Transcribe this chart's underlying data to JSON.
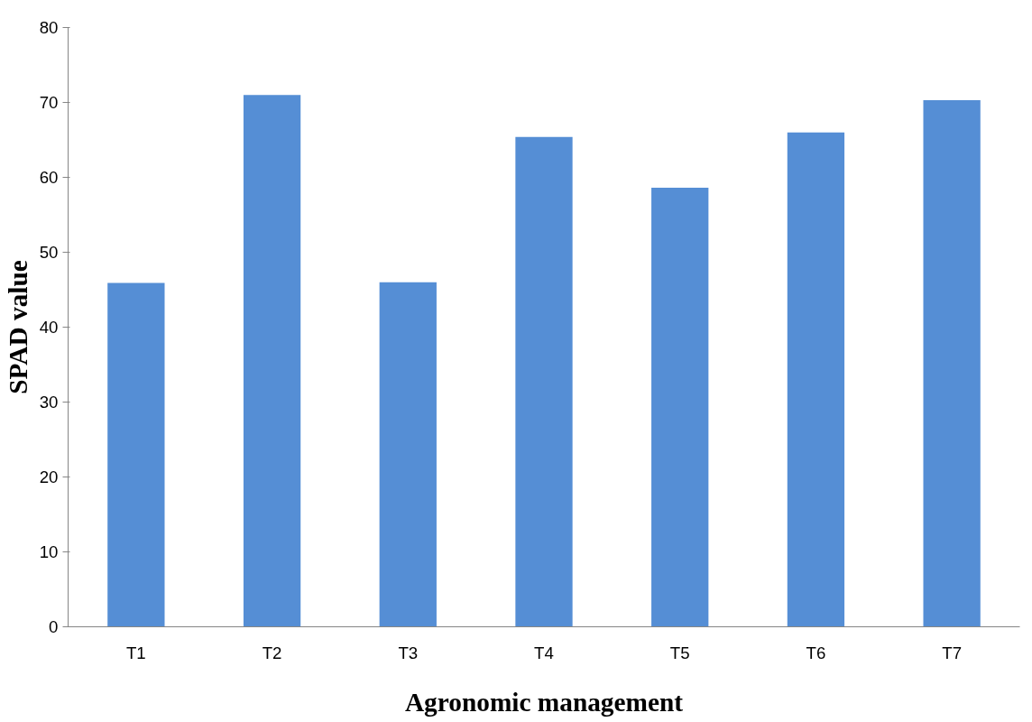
{
  "chart_data": {
    "type": "bar",
    "xlabel": "Agronomic management",
    "ylabel": "SPAD value",
    "categories": [
      "T1",
      "T2",
      "T3",
      "T4",
      "T5",
      "T6",
      "T7"
    ],
    "values": [
      45.9,
      71.0,
      46.0,
      65.4,
      58.6,
      66.0,
      70.3
    ],
    "color": "#558ed5",
    "ylim": [
      0,
      80
    ],
    "yticks": [
      0,
      10,
      20,
      30,
      40,
      50,
      60,
      70,
      80
    ],
    "grid": false
  }
}
